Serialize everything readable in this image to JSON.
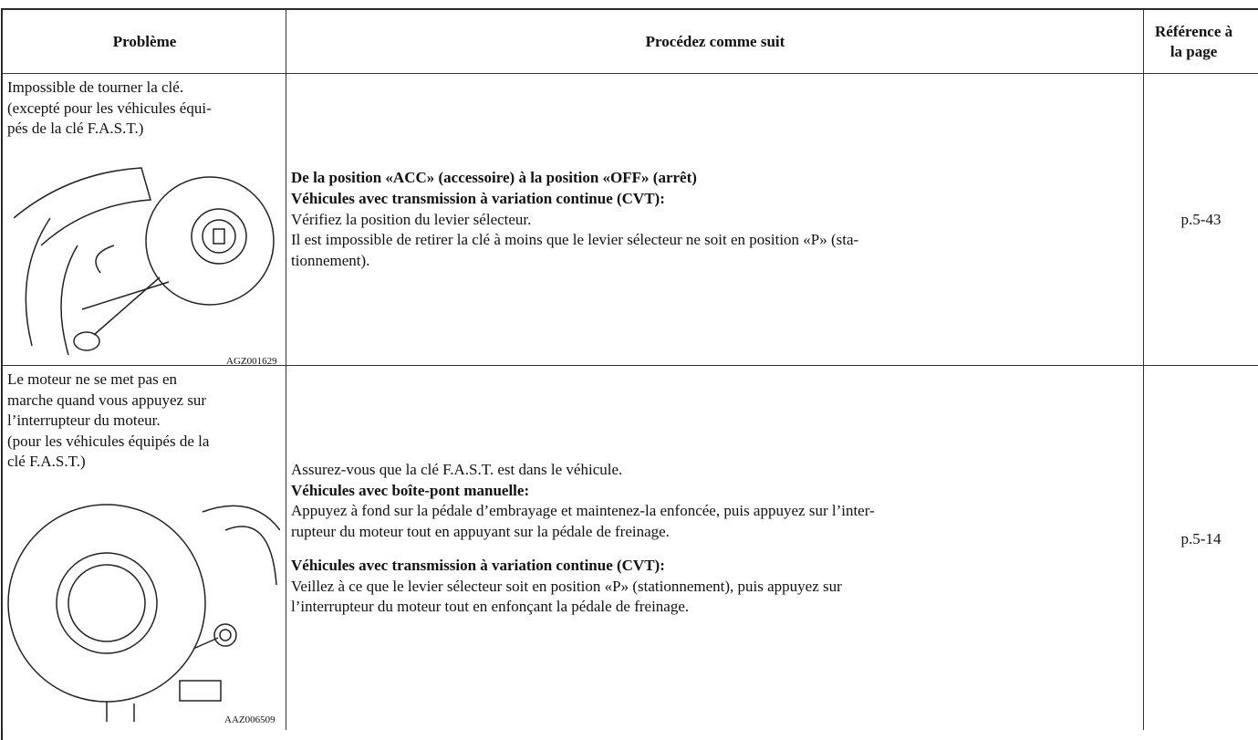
{
  "header": {
    "problem": "Problème",
    "procedure": "Procédez comme suit",
    "reference": [
      "Référence à",
      "la page"
    ]
  },
  "rows": [
    {
      "problem_lines": [
        "Impossible de tourner la clé.",
        "(excepté pour les véhicules équi-",
        "pés de la clé F.A.S.T.)"
      ],
      "image_code": "AGZ001629",
      "paragraphs": [
        [
          {
            "text": "De la position «ACC» (accessoire) à la position «OFF» (arrêt)",
            "bold": true
          },
          {
            "text": "Véhicules avec transmission à variation continue (CVT):",
            "bold": true
          },
          {
            "text": "Vérifiez la position du levier sélecteur.",
            "bold": false
          },
          {
            "text": "Il est impossible de retirer la clé à moins que le levier sélecteur ne soit en position «P» (sta-",
            "bold": false
          },
          {
            "text": "tionnement).",
            "bold": false
          }
        ]
      ],
      "reference": "p.5-43"
    },
    {
      "problem_lines": [
        "Le moteur ne se met pas en",
        "marche quand vous appuyez sur",
        "l’interrupteur du moteur.",
        "(pour les véhicules équipés de la",
        "clé F.A.S.T.)"
      ],
      "image_code": "AAZ006509",
      "paragraphs": [
        [
          {
            "text": "Assurez-vous que la clé F.A.S.T. est dans le véhicule.",
            "bold": false
          },
          {
            "text": "Véhicules avec boîte-pont manuelle:",
            "bold": true
          },
          {
            "text": "Appuyez à fond sur la pédale d’embrayage et maintenez-la enfoncée, puis appuyez sur l’inter-",
            "bold": false
          },
          {
            "text": "rupteur du moteur tout en appuyant sur la pédale de freinage.",
            "bold": false
          }
        ],
        [
          {
            "text": "Véhicules avec transmission à variation continue (CVT):",
            "bold": true
          },
          {
            "text": "Veillez à ce que le levier sélecteur soit en position «P» (stationnement), puis appuyez sur",
            "bold": false
          },
          {
            "text": "l’interrupteur du moteur tout en enfonçant la pédale de freinage.",
            "bold": false
          }
        ]
      ],
      "reference": "p.5-14"
    }
  ]
}
